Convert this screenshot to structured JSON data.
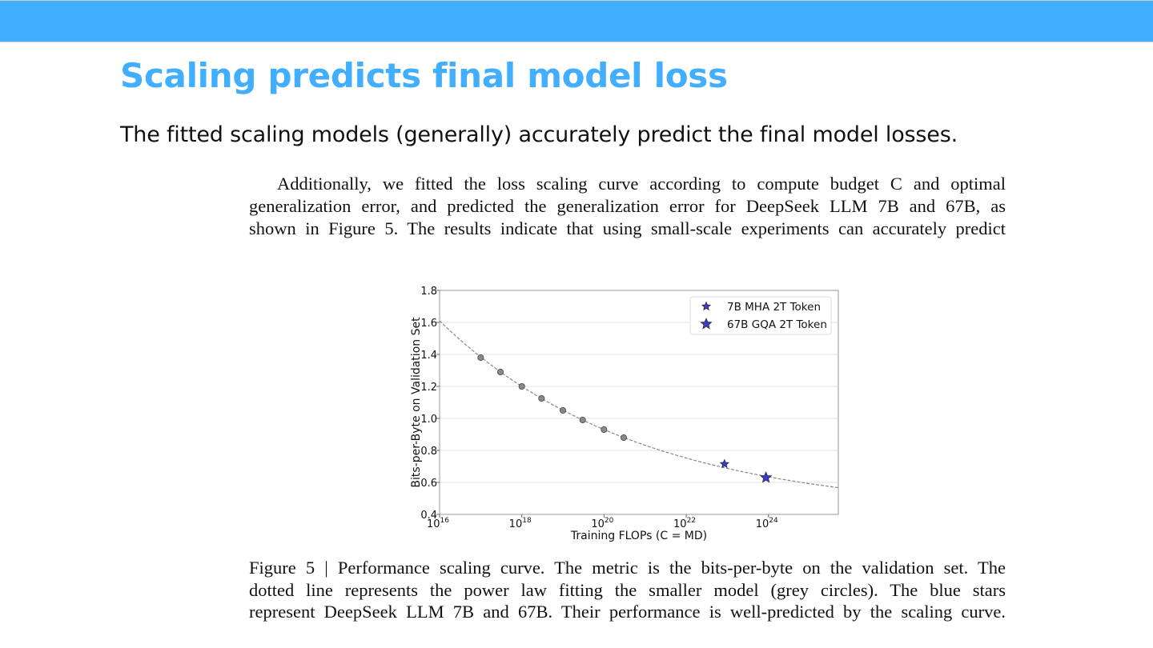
{
  "slide": {
    "title": "Scaling predicts final model loss",
    "subtitle": "The fitted scaling models (generally) accurately predict the final model losses.",
    "accent_color": "#42aeff"
  },
  "paragraph": {
    "lines": [
      "Additionally, we fitted the loss scaling curve according to compute budget C and optimal",
      "generalization error, and predicted the generalization error for DeepSeek LLM 7B and 67B, as",
      "shown in Figure 5. The results indicate that using small-scale experiments can accurately predict"
    ]
  },
  "caption": {
    "lines": [
      "Figure 5 | Performance scaling curve. The metric is the bits-per-byte on the validation set. The",
      "dotted line represents the power law fitting the smaller model (grey circles).  The blue stars",
      "represent DeepSeek LLM 7B and 67B. Their performance is well-predicted by the scaling curve."
    ]
  },
  "chart_data": {
    "type": "scatter",
    "xlabel": "Training FLOPs (C = MD)",
    "ylabel": "Bits-per-Byte on Validation Set",
    "xscale": "log",
    "xlim_log10": [
      16,
      25.7
    ],
    "ylim": [
      0.4,
      1.8
    ],
    "grid": "horizontal",
    "x_ticks": [
      {
        "exp": 16,
        "label": "10",
        "sup": "16"
      },
      {
        "exp": 18,
        "label": "10",
        "sup": "18"
      },
      {
        "exp": 20,
        "label": "10",
        "sup": "20"
      },
      {
        "exp": 22,
        "label": "10",
        "sup": "22"
      },
      {
        "exp": 24,
        "label": "10",
        "sup": "24"
      }
    ],
    "y_ticks": [
      "0.4",
      "0.6",
      "0.8",
      "1.0",
      "1.2",
      "1.4",
      "1.6",
      "1.8"
    ],
    "legend_position": "top-right",
    "small_models": {
      "name": "small models",
      "color": "#888888",
      "x_log10": [
        17.0,
        17.48,
        18.0,
        18.48,
        19.0,
        19.48,
        20.0,
        20.48
      ],
      "y": [
        1.38,
        1.29,
        1.2,
        1.125,
        1.05,
        0.99,
        0.93,
        0.88
      ]
    },
    "fit": {
      "form": "y = E + K * 10^(-b*(log10C-16))",
      "E": 0.408,
      "K": 1.202,
      "b": 0.0905,
      "color": "#888888"
    },
    "series": [
      {
        "name": "7B MHA 2T Token",
        "x_log10": 22.93,
        "y": 0.715,
        "color": "#3a3acf",
        "size": "small"
      },
      {
        "name": "67B GQA 2T Token",
        "x_log10": 23.94,
        "y": 0.63,
        "color": "#3a3acf",
        "size": "large"
      }
    ]
  }
}
